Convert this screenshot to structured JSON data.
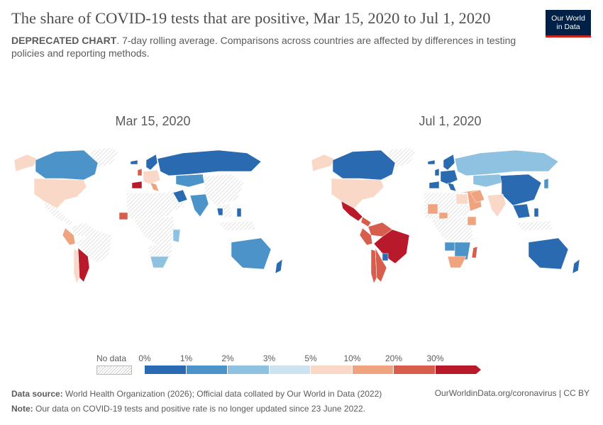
{
  "header": {
    "title": "The share of COVID-19 tests that are positive, Mar 15, 2020 to Jul 1, 2020",
    "subtitle_bold": "DEPRECATED CHART",
    "subtitle_rest": ". 7-day rolling average. Comparisons across countries are affected by differences in testing policies and reporting methods.",
    "logo_line1": "Our World",
    "logo_line2": "in Data"
  },
  "maps": [
    {
      "title": "Mar 15, 2020"
    },
    {
      "title": "Jul 1, 2020"
    }
  ],
  "legend": {
    "no_data": "No data",
    "ticks": [
      "0%",
      "1%",
      "2%",
      "3%",
      "5%",
      "10%",
      "20%",
      "30%"
    ],
    "colors": [
      "#2a6ab1",
      "#4b93c8",
      "#8fc2e0",
      "#cde3f0",
      "#fad8c8",
      "#f0a37f",
      "#d75e4c",
      "#b91a2b"
    ],
    "nodata_color": "#e6e6e6"
  },
  "chart_data": {
    "type": "choropleth",
    "metric": "share of COVID-19 tests that are positive",
    "bins_percent": [
      0,
      1,
      2,
      3,
      5,
      10,
      20,
      30
    ],
    "snapshots": [
      {
        "date": "Mar 15, 2020",
        "regions": [
          {
            "name": "Canada",
            "bin": "1-2%"
          },
          {
            "name": "United States",
            "bin": "5-10%"
          },
          {
            "name": "Alaska",
            "bin": "5-10%"
          },
          {
            "name": "Mexico",
            "bin": "no data"
          },
          {
            "name": "Greenland",
            "bin": "no data"
          },
          {
            "name": "Colombia",
            "bin": "no data"
          },
          {
            "name": "Peru",
            "bin": "10-20%"
          },
          {
            "name": "Brazil",
            "bin": "no data"
          },
          {
            "name": "Argentina",
            "bin": ">30%"
          },
          {
            "name": "Chile",
            "bin": "5-10%"
          },
          {
            "name": "United Kingdom",
            "bin": "10-20%"
          },
          {
            "name": "Iceland",
            "bin": "0-1%"
          },
          {
            "name": "Norway",
            "bin": "0-1%"
          },
          {
            "name": "Spain",
            "bin": ">30%"
          },
          {
            "name": "Italy",
            "bin": "10-20%"
          },
          {
            "name": "Russia",
            "bin": "0-1%"
          },
          {
            "name": "Kazakhstan",
            "bin": "1-2%"
          },
          {
            "name": "China",
            "bin": "no data"
          },
          {
            "name": "Iran",
            "bin": "0-1%"
          },
          {
            "name": "Saudi Arabia",
            "bin": "no data"
          },
          {
            "name": "India",
            "bin": "1-2%"
          },
          {
            "name": "Africa",
            "bin": "no data"
          },
          {
            "name": "Mauritania",
            "bin": ">30%"
          },
          {
            "name": "Kenya",
            "bin": "2-3%"
          },
          {
            "name": "South Africa",
            "bin": "2-3%"
          },
          {
            "name": "Australia",
            "bin": "1-2%"
          },
          {
            "name": "New Zealand",
            "bin": "0-1%"
          },
          {
            "name": "Indonesia",
            "bin": "no data"
          },
          {
            "name": "Thailand",
            "bin": "0-1%"
          },
          {
            "name": "Philippines",
            "bin": "0-1%"
          }
        ]
      },
      {
        "date": "Jul 1, 2020",
        "regions": [
          {
            "name": "Canada",
            "bin": "0-1%"
          },
          {
            "name": "United States",
            "bin": "5-10%"
          },
          {
            "name": "Alaska",
            "bin": "5-10%"
          },
          {
            "name": "Mexico",
            "bin": ">30%"
          },
          {
            "name": "Greenland",
            "bin": "no data"
          },
          {
            "name": "Colombia",
            "bin": "20-30%"
          },
          {
            "name": "Peru",
            "bin": "20-30%"
          },
          {
            "name": "Brazil",
            "bin": ">30%"
          },
          {
            "name": "Argentina",
            "bin": "20-30%"
          },
          {
            "name": "Chile",
            "bin": "20-30%"
          },
          {
            "name": "Paraguay",
            "bin": "0-1%"
          },
          {
            "name": "United Kingdom",
            "bin": "0-1%"
          },
          {
            "name": "Iceland",
            "bin": "0-1%"
          },
          {
            "name": "Norway",
            "bin": "0-1%"
          },
          {
            "name": "Spain",
            "bin": "0-1%"
          },
          {
            "name": "Russia",
            "bin": "2-3%"
          },
          {
            "name": "Kazakhstan",
            "bin": "2-3%"
          },
          {
            "name": "China",
            "bin": "0-1%"
          },
          {
            "name": "Iran",
            "bin": "10-20%"
          },
          {
            "name": "Saudi Arabia",
            "bin": "10-20%"
          },
          {
            "name": "India",
            "bin": "5-10%"
          },
          {
            "name": "Africa",
            "bin": "no data"
          },
          {
            "name": "Mali",
            "bin": "10-20%"
          },
          {
            "name": "Nigeria",
            "bin": "10-20%"
          },
          {
            "name": "Egypt",
            "bin": "5-10%"
          },
          {
            "name": "Ethiopia",
            "bin": "10-20%"
          },
          {
            "name": "Angola",
            "bin": "1-2%"
          },
          {
            "name": "South Africa",
            "bin": "10-20%"
          },
          {
            "name": "Mozambique",
            "bin": "2-3%"
          },
          {
            "name": "Madagascar",
            "bin": "20-30%"
          },
          {
            "name": "Australia",
            "bin": "0-1%"
          },
          {
            "name": "New Zealand",
            "bin": "0-1%"
          },
          {
            "name": "Indonesia",
            "bin": "no data"
          },
          {
            "name": "Japan",
            "bin": "1-2%"
          },
          {
            "name": "Southeast Asia",
            "bin": "0-1%"
          }
        ]
      }
    ]
  },
  "footer": {
    "source_bold": "Data source:",
    "source_text": " World Health Organization (2026); Official data collated by Our World in Data (2022)",
    "right_text": "OurWorldinData.org/coronavirus | CC BY",
    "note_bold": "Note:",
    "note_text": " Our data on COVID-19 tests and positive rate is no longer updated since 23 June 2022."
  }
}
